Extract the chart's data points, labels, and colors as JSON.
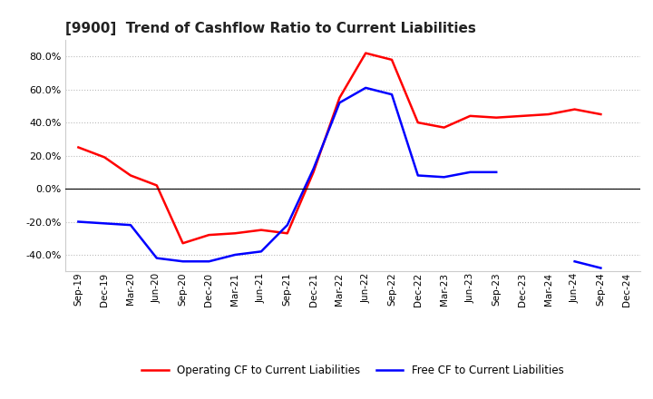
{
  "title": "[9900]  Trend of Cashflow Ratio to Current Liabilities",
  "x_labels": [
    "Sep-19",
    "Dec-19",
    "Mar-20",
    "Jun-20",
    "Sep-20",
    "Dec-20",
    "Mar-21",
    "Jun-21",
    "Sep-21",
    "Dec-21",
    "Mar-22",
    "Jun-22",
    "Sep-22",
    "Dec-22",
    "Mar-23",
    "Jun-23",
    "Sep-23",
    "Dec-23",
    "Mar-24",
    "Jun-24",
    "Sep-24",
    "Dec-24"
  ],
  "operating_cf": [
    25.0,
    19.0,
    8.0,
    2.0,
    -33.0,
    -28.0,
    -27.0,
    -25.0,
    -27.0,
    10.0,
    55.0,
    82.0,
    78.0,
    40.0,
    37.0,
    44.0,
    43.0,
    44.0,
    45.0,
    48.0,
    45.0,
    null
  ],
  "free_cf": [
    -20.0,
    -21.0,
    -22.0,
    -42.0,
    -44.0,
    -44.0,
    -40.0,
    -38.0,
    -22.0,
    12.0,
    52.0,
    61.0,
    57.0,
    8.0,
    7.0,
    10.0,
    10.0,
    null,
    null,
    -44.0,
    -48.0,
    null
  ],
  "ylim": [
    -50,
    90
  ],
  "yticks": [
    -40.0,
    -20.0,
    0.0,
    20.0,
    40.0,
    60.0,
    80.0
  ],
  "operating_color": "#FF0000",
  "free_color": "#0000FF",
  "background_color": "#FFFFFF",
  "grid_color": "#BBBBBB",
  "title_color": "#222222",
  "legend_operating": "Operating CF to Current Liabilities",
  "legend_free": "Free CF to Current Liabilities"
}
